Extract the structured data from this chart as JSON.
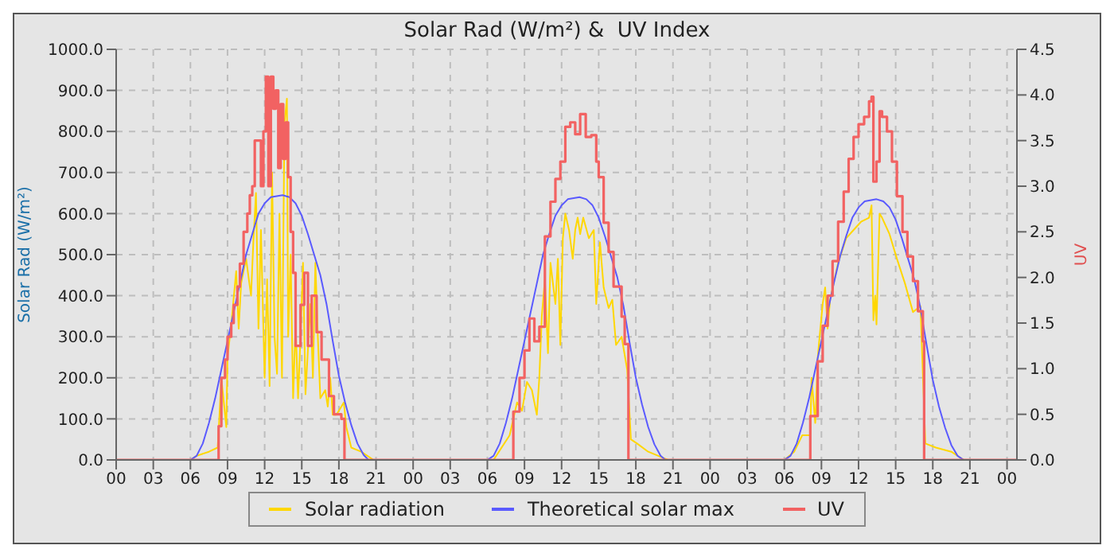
{
  "chart_data": {
    "type": "line",
    "title": "Solar Rad (W/m²) &  UV Index",
    "ylabel": "Solar Rad (W/m²)",
    "y2label": "UV",
    "xlim": [
      0,
      72.8
    ],
    "xticks": [
      {
        "value": 0,
        "label": "00"
      },
      {
        "value": 3,
        "label": "03"
      },
      {
        "value": 6,
        "label": "06"
      },
      {
        "value": 9,
        "label": "09"
      },
      {
        "value": 12,
        "label": "12"
      },
      {
        "value": 15,
        "label": "15"
      },
      {
        "value": 18,
        "label": "18"
      },
      {
        "value": 21,
        "label": "21"
      },
      {
        "value": 24,
        "label": "00"
      },
      {
        "value": 27,
        "label": "03"
      },
      {
        "value": 30,
        "label": "06"
      },
      {
        "value": 33,
        "label": "09"
      },
      {
        "value": 36,
        "label": "12"
      },
      {
        "value": 39,
        "label": "15"
      },
      {
        "value": 42,
        "label": "18"
      },
      {
        "value": 45,
        "label": "21"
      },
      {
        "value": 48,
        "label": "00"
      },
      {
        "value": 51,
        "label": "03"
      },
      {
        "value": 54,
        "label": "06"
      },
      {
        "value": 57,
        "label": "09"
      },
      {
        "value": 60,
        "label": "12"
      },
      {
        "value": 63,
        "label": "15"
      },
      {
        "value": 66,
        "label": "18"
      },
      {
        "value": 69,
        "label": "21"
      },
      {
        "value": 72,
        "label": "00"
      }
    ],
    "ylim": [
      0,
      1000
    ],
    "yticks": [
      {
        "value": 0,
        "label": "0.0"
      },
      {
        "value": 100,
        "label": "100.0"
      },
      {
        "value": 200,
        "label": "200.0"
      },
      {
        "value": 300,
        "label": "300.0"
      },
      {
        "value": 400,
        "label": "400.0"
      },
      {
        "value": 500,
        "label": "500.0"
      },
      {
        "value": 600,
        "label": "600.0"
      },
      {
        "value": 700,
        "label": "700.0"
      },
      {
        "value": 800,
        "label": "800.0"
      },
      {
        "value": 900,
        "label": "900.0"
      },
      {
        "value": 1000,
        "label": "1000.0"
      }
    ],
    "y2lim": [
      0,
      4.5
    ],
    "y2ticks": [
      {
        "value": 0,
        "label": "0.0"
      },
      {
        "value": 0.5,
        "label": "0.5"
      },
      {
        "value": 1,
        "label": "1.0"
      },
      {
        "value": 1.5,
        "label": "1.5"
      },
      {
        "value": 2,
        "label": "2.0"
      },
      {
        "value": 2.5,
        "label": "2.5"
      },
      {
        "value": 3,
        "label": "3.0"
      },
      {
        "value": 3.5,
        "label": "3.5"
      },
      {
        "value": 4,
        "label": "4.0"
      },
      {
        "value": 4.5,
        "label": "4.5"
      }
    ],
    "grid": true,
    "legend": "bottom",
    "marker": "none",
    "line_style": "solid",
    "series": [
      {
        "name": "Solar radiation",
        "color": "#ffd700",
        "type": "line",
        "x": [
          0,
          6.0,
          6.5,
          7.5,
          8.2,
          8.3,
          8.5,
          8.9,
          9.0,
          9.3,
          9.7,
          9.9,
          10.1,
          10.5,
          10.9,
          11.1,
          11.3,
          11.5,
          11.7,
          12.0,
          12.2,
          12.4,
          12.6,
          12.8,
          13.0,
          13.2,
          13.4,
          13.6,
          13.8,
          13.9,
          14.1,
          14.3,
          14.5,
          14.7,
          14.9,
          15.1,
          15.3,
          15.7,
          15.9,
          16.1,
          16.3,
          16.5,
          16.9,
          17.1,
          17.3,
          17.5,
          17.8,
          18.2,
          18.4,
          18.6,
          19.0,
          19.8,
          20.8,
          30.5,
          31.8,
          32.4,
          32.8,
          33.2,
          33.6,
          34.0,
          34.2,
          34.4,
          34.65,
          34.9,
          35.1,
          35.5,
          35.7,
          35.9,
          36.1,
          36.3,
          36.6,
          36.9,
          37.1,
          37.3,
          37.5,
          37.75,
          38.2,
          38.6,
          38.8,
          39.1,
          39.4,
          39.8,
          40.1,
          40.4,
          40.85,
          41.3,
          41.6,
          42.1,
          43.0,
          44.2,
          44.6,
          54.0,
          54.8,
          55.45,
          56.1,
          56.2,
          56.5,
          56.7,
          57.1,
          57.3,
          57.5,
          57.7,
          58.35,
          59.0,
          59.6,
          60.2,
          60.85,
          61.05,
          61.2,
          61.35,
          61.45,
          61.7,
          61.9,
          62.5,
          63.1,
          63.75,
          64.4,
          65.0,
          65.4,
          66.25,
          67.5,
          68.5,
          72.8
        ],
        "values": [
          0,
          0,
          10,
          20,
          30,
          80,
          200,
          80,
          250,
          330,
          460,
          320,
          430,
          490,
          400,
          540,
          650,
          320,
          560,
          200,
          440,
          180,
          700,
          300,
          210,
          600,
          200,
          820,
          880,
          300,
          500,
          150,
          330,
          150,
          300,
          480,
          160,
          380,
          200,
          480,
          300,
          150,
          170,
          130,
          200,
          110,
          110,
          130,
          140,
          80,
          30,
          20,
          0,
          0,
          60,
          140,
          120,
          190,
          170,
          110,
          200,
          350,
          440,
          260,
          480,
          380,
          490,
          280,
          540,
          600,
          560,
          490,
          560,
          590,
          550,
          590,
          540,
          560,
          380,
          530,
          420,
          370,
          390,
          280,
          300,
          220,
          50,
          40,
          20,
          5,
          0,
          0,
          20,
          60,
          60,
          200,
          90,
          250,
          380,
          420,
          320,
          390,
          480,
          540,
          560,
          580,
          590,
          620,
          340,
          400,
          330,
          600,
          590,
          550,
          490,
          430,
          360,
          375,
          40,
          30,
          20,
          0,
          0
        ]
      },
      {
        "name": "Theoretical solar max",
        "color": "#5a5aff",
        "type": "line",
        "x": [
          0,
          6.0,
          6.5,
          7.0,
          7.5,
          8.0,
          8.5,
          9.0,
          9.5,
          10.0,
          10.5,
          11.0,
          11.5,
          12.0,
          12.5,
          13.45,
          14.0,
          14.5,
          15.0,
          15.5,
          16.0,
          16.5,
          17.0,
          17.5,
          18.0,
          18.5,
          19.0,
          19.5,
          20.0,
          20.4,
          30.0,
          30.5,
          31.0,
          31.5,
          32.0,
          32.5,
          33.0,
          33.5,
          34.0,
          34.5,
          35.0,
          35.5,
          36.0,
          36.5,
          37.45,
          38.0,
          38.5,
          39.0,
          39.5,
          40.0,
          40.5,
          41.0,
          41.5,
          42.0,
          42.5,
          43.0,
          43.5,
          44.0,
          44.4,
          54.0,
          54.5,
          55.0,
          55.5,
          56.0,
          56.5,
          57.0,
          57.5,
          58.0,
          58.5,
          59.0,
          59.5,
          60.0,
          60.5,
          61.45,
          62.0,
          62.5,
          63.0,
          63.5,
          64.0,
          64.5,
          65.0,
          65.5,
          66.0,
          66.5,
          67.0,
          67.5,
          68.0,
          68.5,
          72.8
        ],
        "values": [
          0,
          0,
          10,
          40,
          90,
          150,
          220,
          290,
          360,
          430,
          500,
          550,
          600,
          625,
          640,
          645,
          640,
          625,
          595,
          550,
          500,
          450,
          380,
          290,
          205,
          140,
          85,
          40,
          12,
          0,
          0,
          10,
          40,
          90,
          150,
          220,
          290,
          360,
          430,
          500,
          550,
          595,
          620,
          635,
          640,
          635,
          620,
          590,
          545,
          495,
          445,
          375,
          285,
          200,
          135,
          80,
          38,
          10,
          0,
          0,
          10,
          40,
          90,
          150,
          220,
          290,
          360,
          430,
          495,
          545,
          590,
          615,
          630,
          635,
          630,
          615,
          585,
          540,
          490,
          440,
          370,
          280,
          195,
          130,
          78,
          36,
          10,
          0,
          0
        ]
      },
      {
        "name": "UV",
        "color": "#f26262",
        "type": "step",
        "axis": "y2",
        "x": [
          0,
          8.28,
          8.5,
          8.8,
          9.0,
          9.3,
          9.5,
          9.8,
          10.0,
          10.3,
          10.6,
          10.8,
          11.0,
          11.2,
          11.5,
          11.7,
          11.9,
          12.1,
          12.3,
          12.5,
          12.7,
          12.9,
          13.1,
          13.3,
          13.5,
          13.7,
          13.9,
          14.1,
          14.3,
          14.5,
          14.9,
          15.2,
          15.5,
          15.8,
          16.2,
          16.6,
          17.2,
          17.6,
          18.2,
          18.45,
          32.1,
          32.6,
          33.0,
          33.4,
          33.8,
          34.2,
          34.65,
          35.1,
          35.5,
          35.9,
          36.3,
          36.7,
          37.1,
          37.5,
          37.95,
          38.4,
          38.8,
          39.0,
          39.4,
          39.8,
          40.2,
          40.85,
          41.1,
          41.4,
          56.1,
          56.7,
          57.1,
          57.5,
          57.9,
          58.35,
          58.8,
          59.2,
          59.6,
          60.0,
          60.45,
          60.85,
          61.05,
          61.2,
          61.45,
          61.7,
          61.9,
          62.3,
          62.7,
          63.1,
          63.55,
          63.95,
          64.4,
          64.8,
          65.2,
          65.3,
          72.8
        ],
        "values": [
          0,
          0.37,
          0.9,
          1.1,
          1.35,
          1.5,
          1.7,
          1.9,
          2.15,
          2.5,
          2.7,
          2.9,
          3.0,
          3.5,
          3.5,
          3.0,
          3.6,
          4.2,
          3.0,
          4.2,
          3.85,
          4.05,
          3.2,
          3.9,
          3.3,
          3.7,
          3.1,
          2.5,
          2.05,
          1.25,
          1.7,
          2.05,
          1.25,
          1.8,
          1.4,
          1.1,
          0.7,
          0.5,
          0.45,
          0,
          0.53,
          0.9,
          1.2,
          1.55,
          1.3,
          1.46,
          2.45,
          2.83,
          3.08,
          3.27,
          3.65,
          3.7,
          3.57,
          3.79,
          3.54,
          3.56,
          3.27,
          3.1,
          2.6,
          2.28,
          1.9,
          1.57,
          1.27,
          0,
          0.48,
          1.08,
          1.47,
          1.8,
          2.18,
          2.61,
          2.94,
          3.3,
          3.54,
          3.68,
          3.76,
          3.93,
          3.98,
          3.05,
          3.27,
          3.82,
          3.76,
          3.6,
          3.27,
          2.89,
          2.5,
          2.23,
          1.96,
          1.63,
          1.3,
          0,
          0
        ]
      }
    ]
  }
}
